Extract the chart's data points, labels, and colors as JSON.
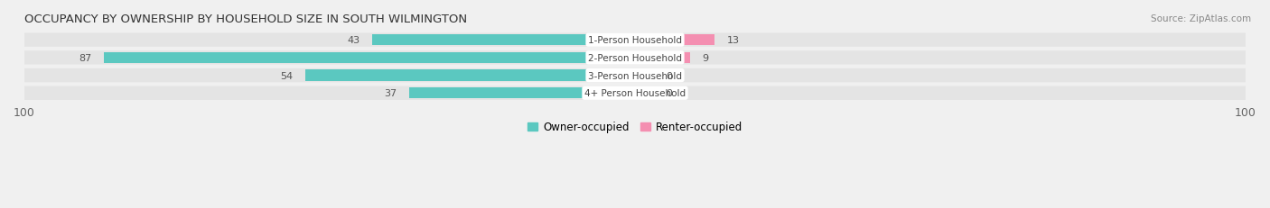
{
  "title": "OCCUPANCY BY OWNERSHIP BY HOUSEHOLD SIZE IN SOUTH WILMINGTON",
  "source": "Source: ZipAtlas.com",
  "categories": [
    "1-Person Household",
    "2-Person Household",
    "3-Person Household",
    "4+ Person Household"
  ],
  "owner_values": [
    43,
    87,
    54,
    37
  ],
  "renter_values": [
    13,
    9,
    0,
    0
  ],
  "owner_color": "#5bc8c0",
  "renter_color": "#f48fb1",
  "row_bg_color": "#e4e4e4",
  "label_bg_color": "#ffffff",
  "axis_max": 100,
  "legend_owner": "Owner-occupied",
  "legend_renter": "Renter-occupied",
  "figsize": [
    14.06,
    2.32
  ],
  "dpi": 100
}
